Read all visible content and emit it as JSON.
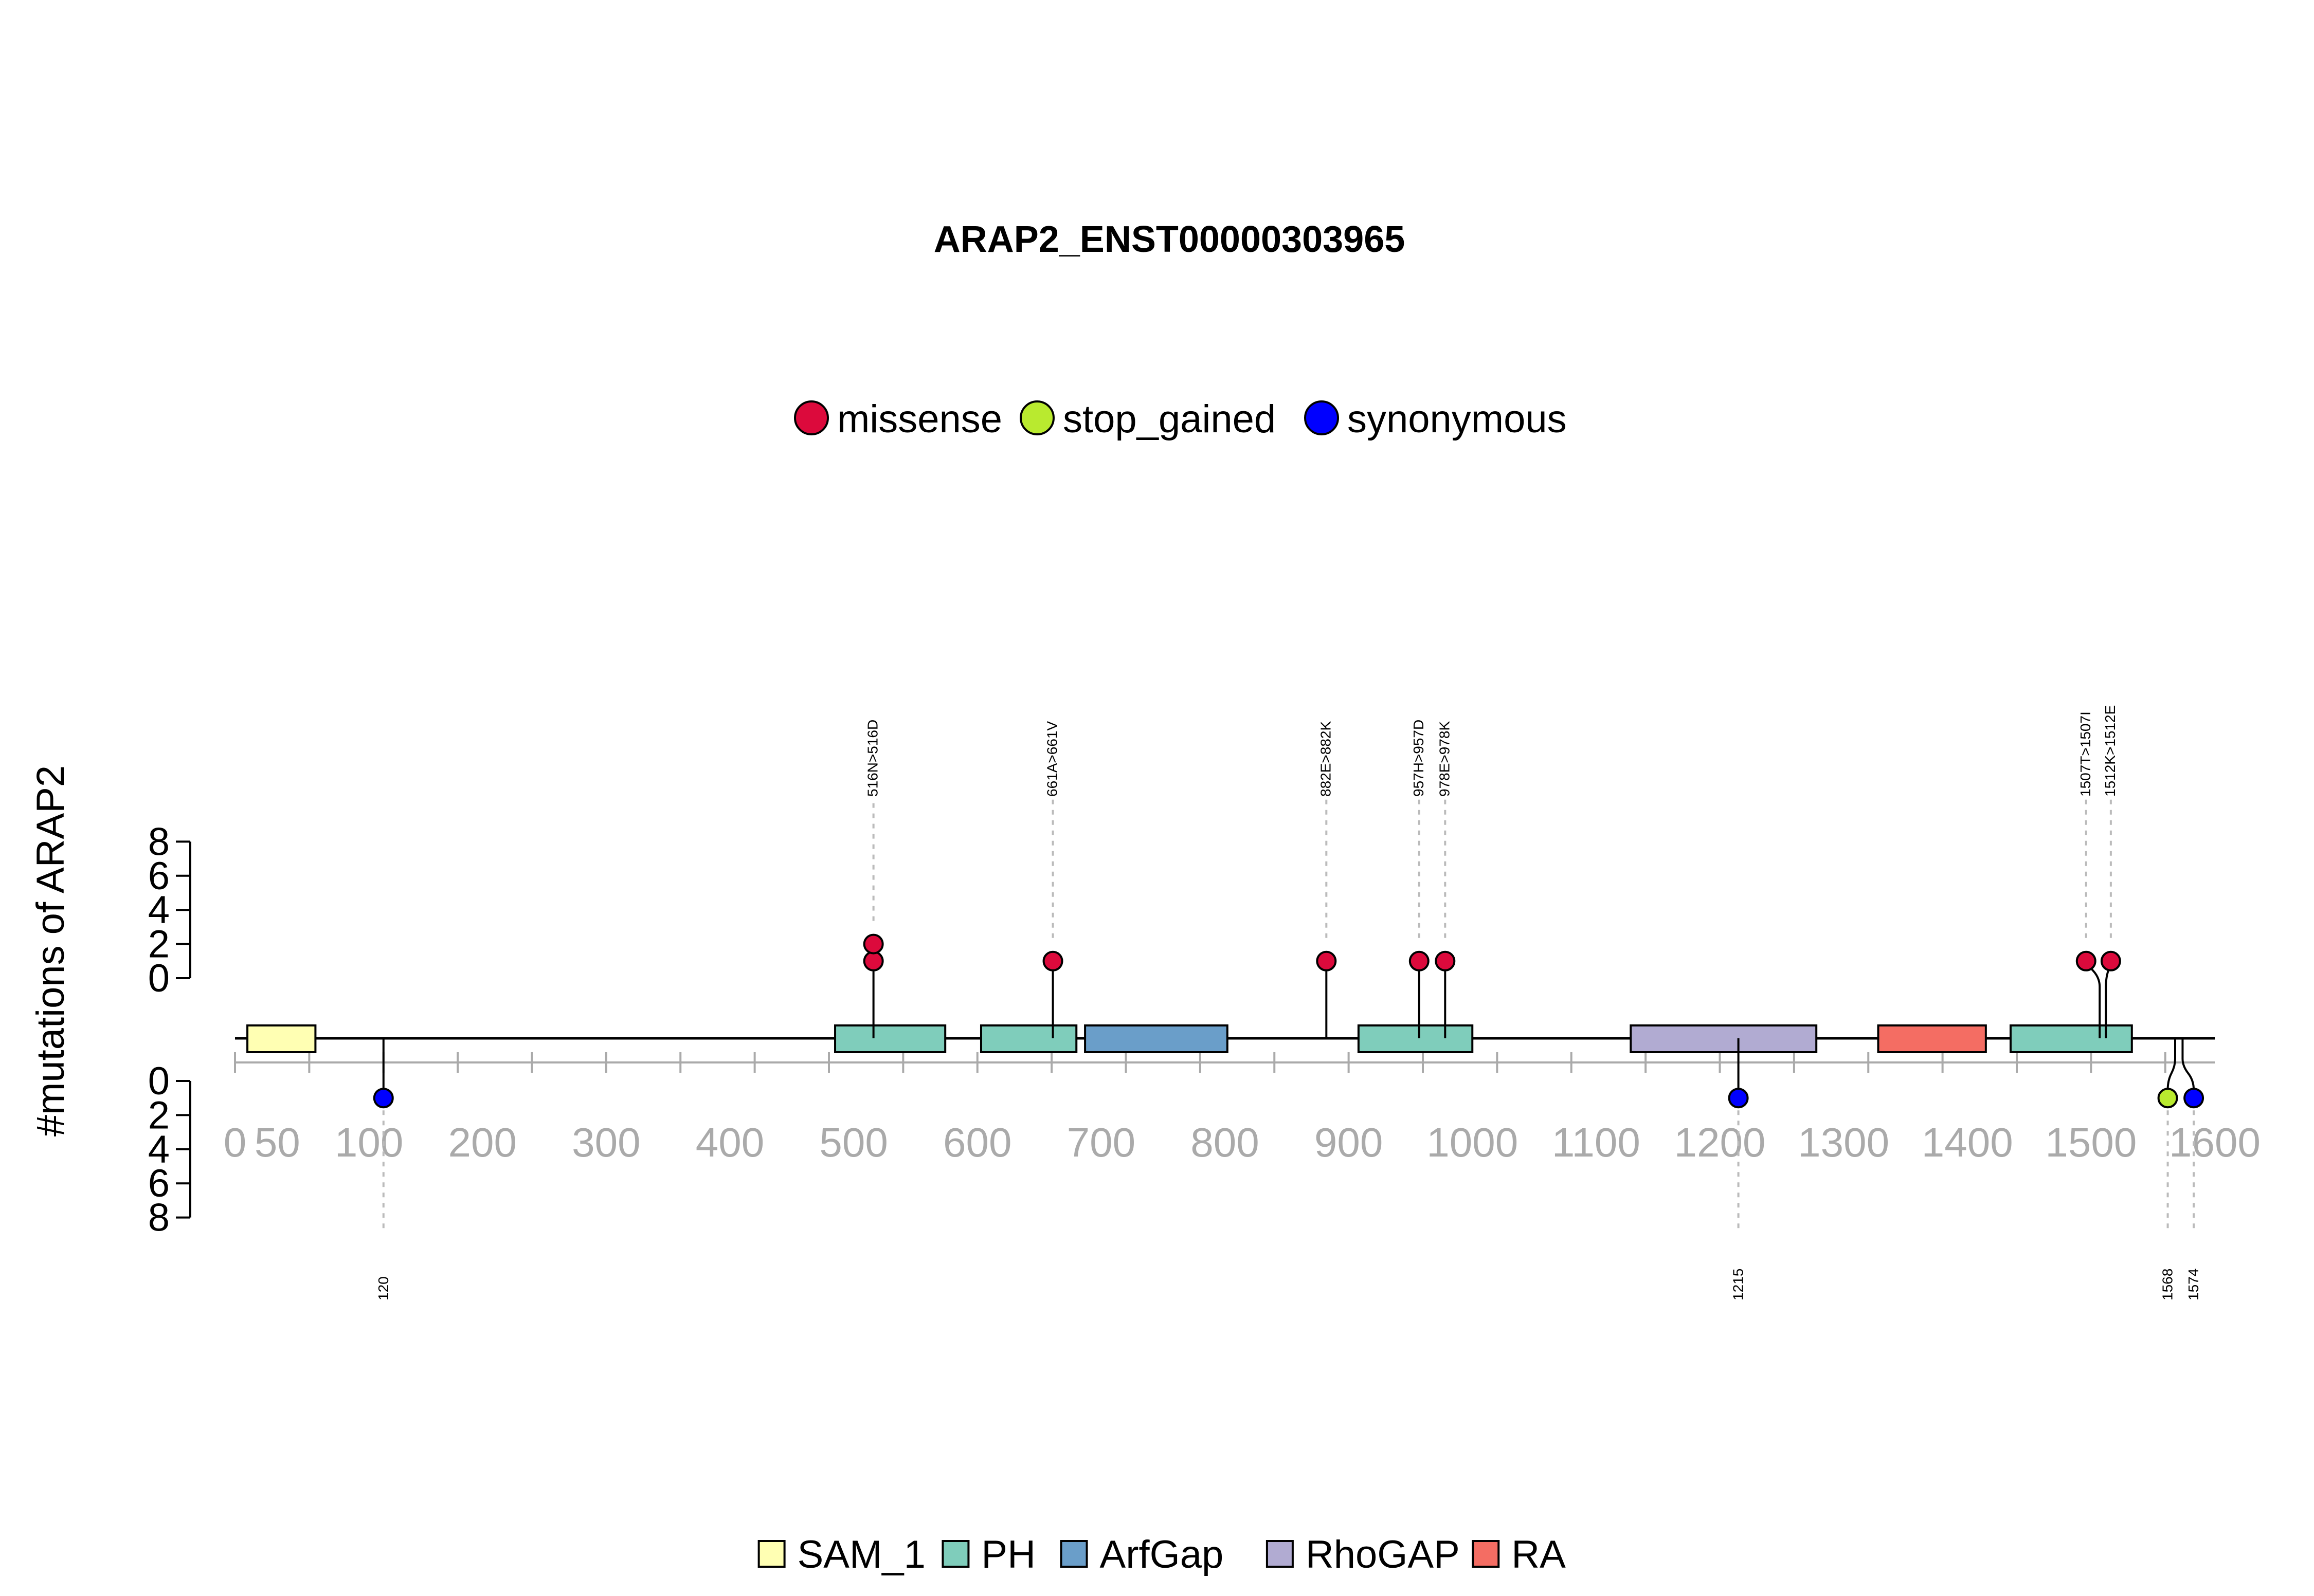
{
  "chart_data": {
    "type": "lollipop",
    "title": "ARAP2_ENST00000303965",
    "ylabel": "#mutations of ARAP2",
    "protein_length": 1600,
    "x_ticks": [
      0,
      50,
      100,
      200,
      300,
      400,
      500,
      600,
      700,
      800,
      900,
      1000,
      1100,
      1200,
      1300,
      1400,
      1500,
      1600
    ],
    "x_tick_labels": [
      "0",
      "50",
      "100",
      "200",
      "300",
      "400",
      "500",
      "600",
      "700",
      "800",
      "900",
      "1000",
      "1100",
      "1200",
      "1300",
      "1400",
      "1500",
      "1600"
    ],
    "y_ticks": [
      0,
      2,
      4,
      6,
      8
    ],
    "y_tick_labels": [
      "0",
      "2",
      "4",
      "6",
      "8"
    ],
    "legend_top": [
      {
        "name": "missense",
        "color": "#dc0a3c"
      },
      {
        "name": "stop_gained",
        "color": "#b9ea2f"
      },
      {
        "name": "synonymous",
        "color": "#0000ff"
      }
    ],
    "legend_bottom": [
      {
        "name": "SAM_1",
        "color": "#ffffb3"
      },
      {
        "name": "PH",
        "color": "#7fcdbb"
      },
      {
        "name": "ArfGap",
        "color": "#6a9ec9"
      },
      {
        "name": "RhoGAP",
        "color": "#b1abd2"
      },
      {
        "name": "RA",
        "color": "#f46d63"
      }
    ],
    "domains": [
      {
        "name": "SAM_1",
        "start": 10,
        "end": 65,
        "color": "#ffffb3"
      },
      {
        "name": "PH",
        "start": 485,
        "end": 574,
        "color": "#7fcdbb"
      },
      {
        "name": "PH",
        "start": 603,
        "end": 680,
        "color": "#7fcdbb"
      },
      {
        "name": "ArfGap",
        "start": 687,
        "end": 802,
        "color": "#6a9ec9"
      },
      {
        "name": "PH",
        "start": 908,
        "end": 1000,
        "color": "#7fcdbb"
      },
      {
        "name": "RhoGAP",
        "start": 1128,
        "end": 1278,
        "color": "#b1abd2"
      },
      {
        "name": "RA",
        "start": 1328,
        "end": 1415,
        "color": "#f46d63"
      },
      {
        "name": "PH",
        "start": 1435,
        "end": 1533,
        "color": "#7fcdbb"
      }
    ],
    "mutations_top": [
      {
        "pos": 516,
        "label": "516N>516D",
        "count": 2,
        "type": "missense",
        "color": "#dc0a3c",
        "draw_pos": 516
      },
      {
        "pos": 661,
        "label": "661A>661V",
        "count": 1,
        "type": "missense",
        "color": "#dc0a3c",
        "draw_pos": 661
      },
      {
        "pos": 882,
        "label": "882E>882K",
        "count": 1,
        "type": "missense",
        "color": "#dc0a3c",
        "draw_pos": 882
      },
      {
        "pos": 957,
        "label": "957H>957D",
        "count": 1,
        "type": "missense",
        "color": "#dc0a3c",
        "draw_pos": 957
      },
      {
        "pos": 978,
        "label": "978E>978K",
        "count": 1,
        "type": "missense",
        "color": "#dc0a3c",
        "draw_pos": 978
      },
      {
        "pos": 1507,
        "label": "1507T>1507I",
        "count": 1,
        "type": "missense",
        "color": "#dc0a3c",
        "draw_pos": 1496
      },
      {
        "pos": 1512,
        "label": "1512K>1512E",
        "count": 1,
        "type": "missense",
        "color": "#dc0a3c",
        "draw_pos": 1516
      }
    ],
    "mutations_bottom": [
      {
        "pos": 120,
        "label": "120",
        "count": 1,
        "type": "synonymous",
        "color": "#0000ff",
        "draw_pos": 120
      },
      {
        "pos": 1215,
        "label": "1215",
        "count": 1,
        "type": "synonymous",
        "color": "#0000ff",
        "draw_pos": 1215
      },
      {
        "pos": 1568,
        "label": "1568",
        "count": 1,
        "type": "stop_gained",
        "color": "#b9ea2f",
        "draw_pos": 1562
      },
      {
        "pos": 1574,
        "label": "1574",
        "count": 1,
        "type": "synonymous",
        "color": "#0000ff",
        "draw_pos": 1583
      }
    ]
  }
}
